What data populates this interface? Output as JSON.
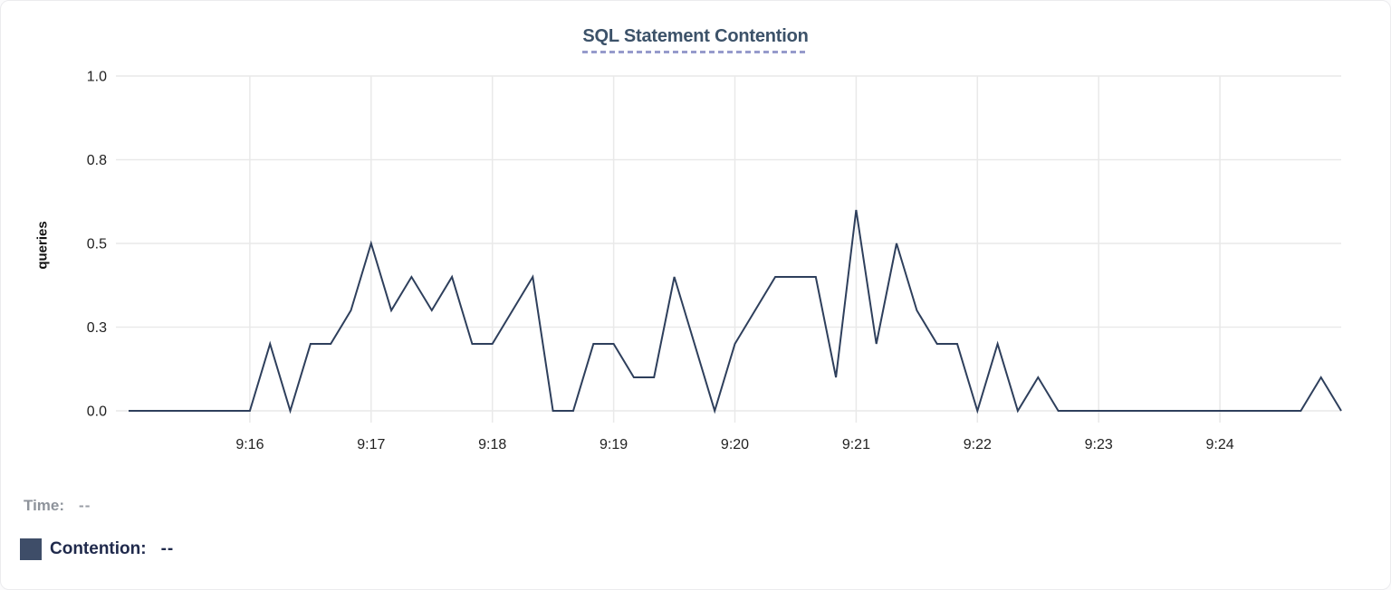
{
  "colors": {
    "line": "#2e3f5c",
    "swatch": "#3e4d68",
    "grid": "#e9e9e9",
    "tick_text": "#212121",
    "title_text": "#3c5269",
    "title_underline": "#969bcb",
    "time_text": "#8e939b",
    "contention_text": "#202a4c"
  },
  "footer": {
    "time_label": "Time:",
    "time_value": "--",
    "contention_label": "Contention:",
    "contention_value": "--"
  },
  "chart_data": {
    "type": "line",
    "title": "SQL Statement Contention",
    "xlabel": "",
    "ylabel": "queries",
    "grid": true,
    "legend_position": "bottom-left",
    "ylim": [
      0,
      1
    ],
    "x_domain": [
      "9:15:00",
      "9:25:00"
    ],
    "interval_seconds": 10,
    "y_ticks": [
      {
        "label": "1.0",
        "value": 1.0
      },
      {
        "label": "0.8",
        "value": 0.75
      },
      {
        "label": "0.5",
        "value": 0.5
      },
      {
        "label": "0.3",
        "value": 0.25
      },
      {
        "label": "0.0",
        "value": 0.0
      }
    ],
    "x_ticks": [
      {
        "label": "9:16",
        "value": "9:16:00"
      },
      {
        "label": "9:17",
        "value": "9:17:00"
      },
      {
        "label": "9:18",
        "value": "9:18:00"
      },
      {
        "label": "9:19",
        "value": "9:19:00"
      },
      {
        "label": "9:20",
        "value": "9:20:00"
      },
      {
        "label": "9:21",
        "value": "9:21:00"
      },
      {
        "label": "9:22",
        "value": "9:22:00"
      },
      {
        "label": "9:23",
        "value": "9:23:00"
      },
      {
        "label": "9:24",
        "value": "9:24:00"
      }
    ],
    "x": [
      "9:15:00",
      "9:15:10",
      "9:15:20",
      "9:15:30",
      "9:15:40",
      "9:15:50",
      "9:16:00",
      "9:16:10",
      "9:16:20",
      "9:16:30",
      "9:16:40",
      "9:16:50",
      "9:17:00",
      "9:17:10",
      "9:17:20",
      "9:17:30",
      "9:17:40",
      "9:17:50",
      "9:18:00",
      "9:18:10",
      "9:18:20",
      "9:18:30",
      "9:18:40",
      "9:18:50",
      "9:19:00",
      "9:19:10",
      "9:19:20",
      "9:19:30",
      "9:19:40",
      "9:19:50",
      "9:20:00",
      "9:20:10",
      "9:20:20",
      "9:20:30",
      "9:20:40",
      "9:20:50",
      "9:21:00",
      "9:21:10",
      "9:21:20",
      "9:21:30",
      "9:21:40",
      "9:21:50",
      "9:22:00",
      "9:22:10",
      "9:22:20",
      "9:22:30",
      "9:22:40",
      "9:22:50",
      "9:23:00",
      "9:23:10",
      "9:23:20",
      "9:23:30",
      "9:23:40",
      "9:23:50",
      "9:24:00",
      "9:24:10",
      "9:24:20",
      "9:24:30",
      "9:24:40",
      "9:24:50",
      "9:25:00"
    ],
    "series": [
      {
        "name": "Contention",
        "color": "#2e3f5c",
        "values": [
          0,
          0,
          0,
          0,
          0,
          0,
          0,
          0.2,
          0,
          0.2,
          0.2,
          0.3,
          0.5,
          0.3,
          0.4,
          0.3,
          0.4,
          0.2,
          0.2,
          0.3,
          0.4,
          0,
          0,
          0.2,
          0.2,
          0.1,
          0.1,
          0.4,
          0.2,
          0,
          0.2,
          0.3,
          0.4,
          0.4,
          0.4,
          0.1,
          0.6,
          0.2,
          0.5,
          0.3,
          0.2,
          0.2,
          0,
          0.2,
          0,
          0.1,
          0,
          0,
          0,
          0,
          0,
          0,
          0,
          0,
          0,
          0,
          0,
          0,
          0,
          0.1,
          0
        ]
      }
    ]
  }
}
